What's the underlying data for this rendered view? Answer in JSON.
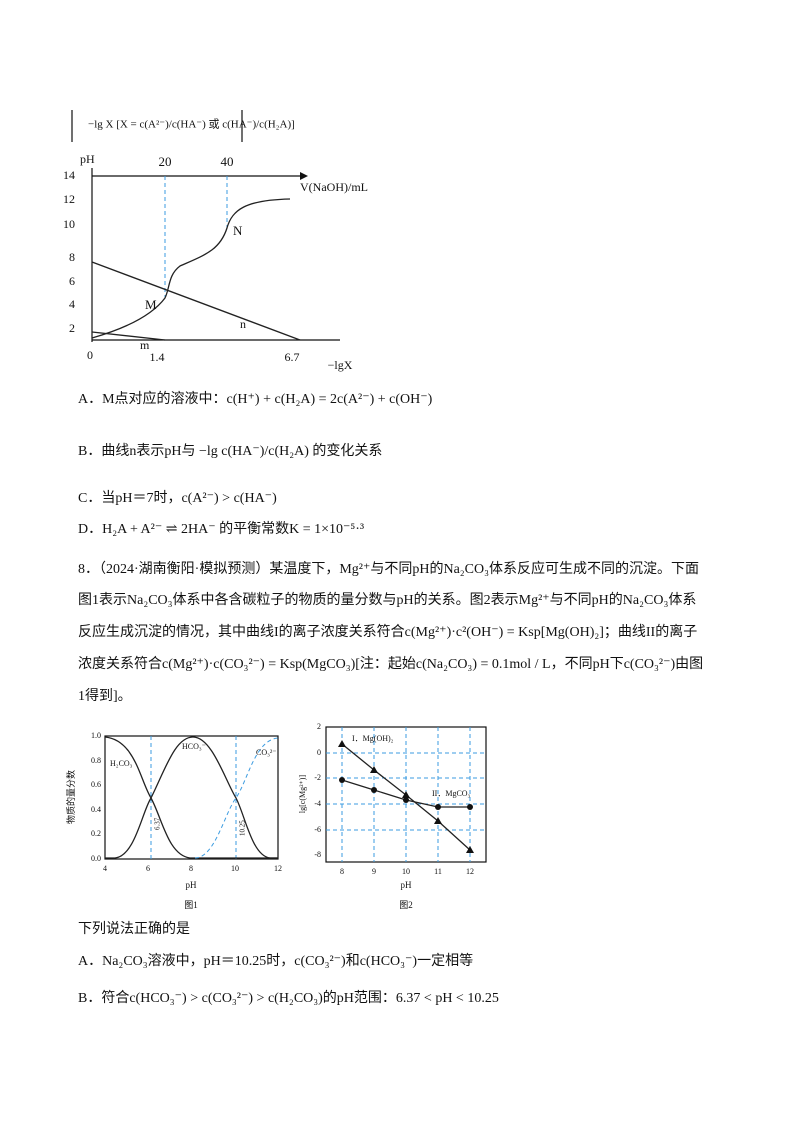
{
  "figure1": {
    "header": "−lg X [X = c(A²⁻)/c(HA⁻) 或 c(HA⁻)/c(H₂A)]",
    "y_title": "pH",
    "yticks": [
      "2",
      "4",
      "6",
      "8",
      "10",
      "12",
      "14"
    ],
    "origin": "0",
    "top_title": "V(NaOH)/mL",
    "top_ticks": [
      "20",
      "40"
    ],
    "bottom_title": "−lgX",
    "bottom_ticks": [
      "1.4",
      "6.7"
    ],
    "labels": {
      "M": "M",
      "N": "N",
      "m": "m",
      "n": "n"
    }
  },
  "options": [
    "A．M点对应的溶液中：c(H⁺) + c(H₂A) = 2c(A²⁻) + c(OH⁻)",
    "B．曲线n表示pH与 −lg c(HA⁻)/c(H₂A) 的变化关系",
    "C．当pH＝7时，c(A²⁻) > c(HA⁻)",
    "D．H₂A + A²⁻ ⇌ 2HA⁻ 的平衡常数K = 1×10⁻⁵·³"
  ],
  "question8": {
    "lines": [
      "8．（2024·湖南衡阳·模拟预测）某温度下，Mg²⁺与不同pH的Na₂CO₃体系反应可生成不同的沉淀。下面",
      "图1表示Na₂CO₃体系中各含碳粒子的物质的量分数与pH的关系。图2表示Mg²⁺与不同pH的Na₂CO₃体系",
      "反应生成沉淀的情况，其中曲线I的离子浓度关系符合c(Mg²⁺)·c²(OH⁻) = Ksp[Mg(OH)₂]；曲线II的离子",
      "浓度关系符合c(Mg²⁺)·c(CO₃²⁻) = Ksp(MgCO₃)[注：起始c(Na₂CO₃) = 0.1mol / L，不同pH下c(CO₃²⁻)由图",
      "1得到]。"
    ]
  },
  "chart1": {
    "y_title": "物质的量分数",
    "yticks": [
      "0.0",
      "0.2",
      "0.4",
      "0.6",
      "0.8",
      "1.0"
    ],
    "xticks": [
      "4",
      "6",
      "8",
      "10",
      "12"
    ],
    "x_title": "pH",
    "species": [
      "H₂CO₃",
      "HCO₃⁻",
      "CO₃²⁻"
    ],
    "marks": [
      "6.37",
      "10.25"
    ],
    "caption": "图1"
  },
  "chart2": {
    "y_title": "lg[c(Mg²⁺)]",
    "yticks": [
      "2",
      "0",
      "-2",
      "-4",
      "-6",
      "-8"
    ],
    "xticks": [
      "8",
      "9",
      "10",
      "11",
      "12"
    ],
    "x_title": "pH",
    "curves": [
      "I．Mg(OH)₂",
      "II．MgCO₃"
    ],
    "caption": "图2"
  },
  "prompt": "下列说法正确的是",
  "answers": [
    "A．Na₂CO₃溶液中，pH＝10.25时，c(CO₃²⁻)和c(HCO₃⁻)一定相等",
    "B．符合c(HCO₃⁻) > c(CO₃²⁻) > c(H₂CO₃)的pH范围：6.37 < pH < 10.25"
  ]
}
